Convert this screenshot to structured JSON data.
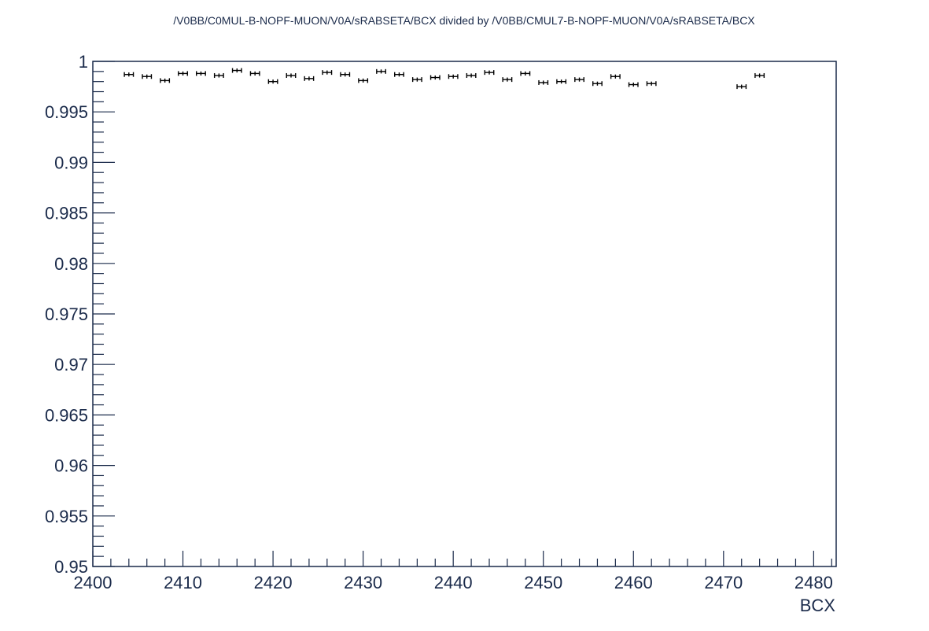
{
  "chart_data": {
    "type": "scatter",
    "title": "/V0BB/C0MUL-B-NOPF-MUON/V0A/sRABSETA/BCX divided by /V0BB/CMUL7-B-NOPF-MUON/V0A/sRABSETA/BCX",
    "xlabel": "BCX",
    "ylabel": "",
    "xlim": [
      2400,
      2482.5
    ],
    "ylim": [
      0.95,
      1.0
    ],
    "x_ticks": [
      "2400",
      "2410",
      "2420",
      "2430",
      "2440",
      "2450",
      "2460",
      "2470",
      "2480"
    ],
    "y_ticks": [
      "0.95",
      "0.955",
      "0.96",
      "0.965",
      "0.97",
      "0.975",
      "0.98",
      "0.985",
      "0.99",
      "0.995",
      "1"
    ],
    "x_error": 0.5,
    "y_error": 0.0002,
    "grid": false,
    "legend": "none",
    "series": [
      {
        "x": [
          2404,
          2406,
          2408,
          2410,
          2412,
          2414,
          2416,
          2418,
          2420,
          2422,
          2424,
          2426,
          2428,
          2430,
          2432,
          2434,
          2436,
          2438,
          2440,
          2442,
          2444,
          2446,
          2448,
          2450,
          2452,
          2454,
          2456,
          2458,
          2460,
          2462,
          2472,
          2474
        ],
        "y": [
          0.9987,
          0.9985,
          0.9981,
          0.9988,
          0.9988,
          0.9986,
          0.9991,
          0.9988,
          0.998,
          0.9986,
          0.9983,
          0.9989,
          0.9987,
          0.9981,
          0.999,
          0.9987,
          0.9982,
          0.9984,
          0.9985,
          0.9986,
          0.9989,
          0.9982,
          0.9988,
          0.9979,
          0.998,
          0.9982,
          0.9978,
          0.9985,
          0.9977,
          0.9978,
          0.9975,
          0.9986
        ]
      }
    ]
  }
}
